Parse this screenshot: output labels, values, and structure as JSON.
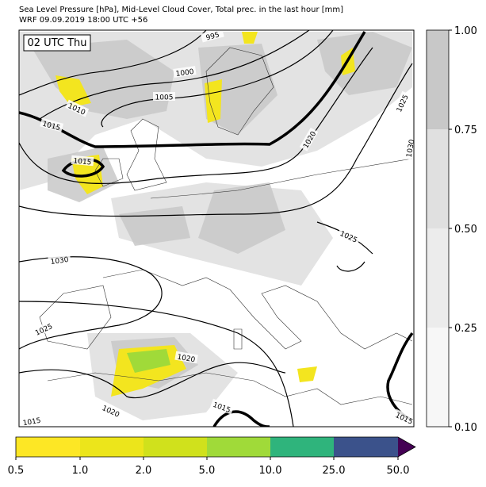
{
  "header": {
    "title": "Sea Level Pressure [hPa], Mid-Level Cloud Cover, Total prec. in the last hour [mm]",
    "subtitle": "WRF 09.09.2019 18:00 UTC +56"
  },
  "time_label": "02 UTC Thu",
  "contour_labels": [
    "995",
    "1000",
    "1005",
    "1010",
    "1015",
    "1015",
    "1020",
    "1025",
    "1030",
    "1025",
    "1030",
    "1025",
    "1020",
    "1020",
    "1015",
    "1015",
    "1015"
  ],
  "cloud_colorbar": {
    "ticks": [
      "1.00",
      "0.75",
      "0.50",
      "0.25",
      "0.10"
    ]
  },
  "precip_colorbar": {
    "ticks": [
      "0.5",
      "1.0",
      "2.0",
      "5.0",
      "10.0",
      "25.0",
      "50.0"
    ]
  }
}
